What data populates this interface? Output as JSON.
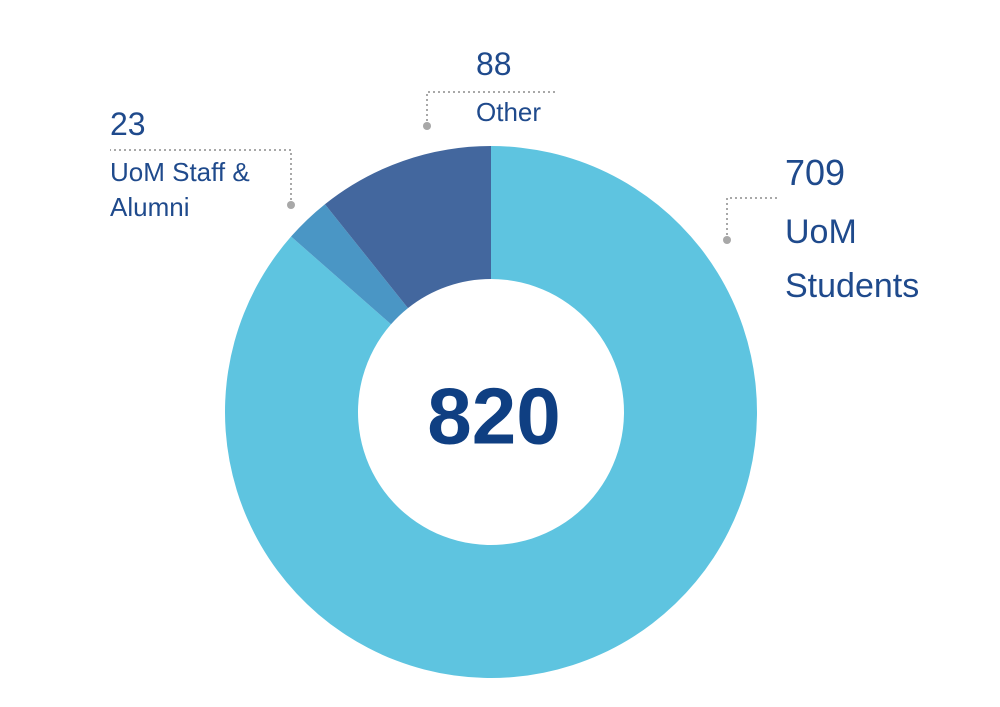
{
  "chart_data": {
    "type": "donut",
    "categories": [
      "UoM Students",
      "UoM Staff & Alumni",
      "Other"
    ],
    "values": [
      709,
      23,
      88
    ],
    "colors": [
      "#5ec4e0",
      "#4a96c5",
      "#43679e"
    ],
    "total": 820
  }
}
